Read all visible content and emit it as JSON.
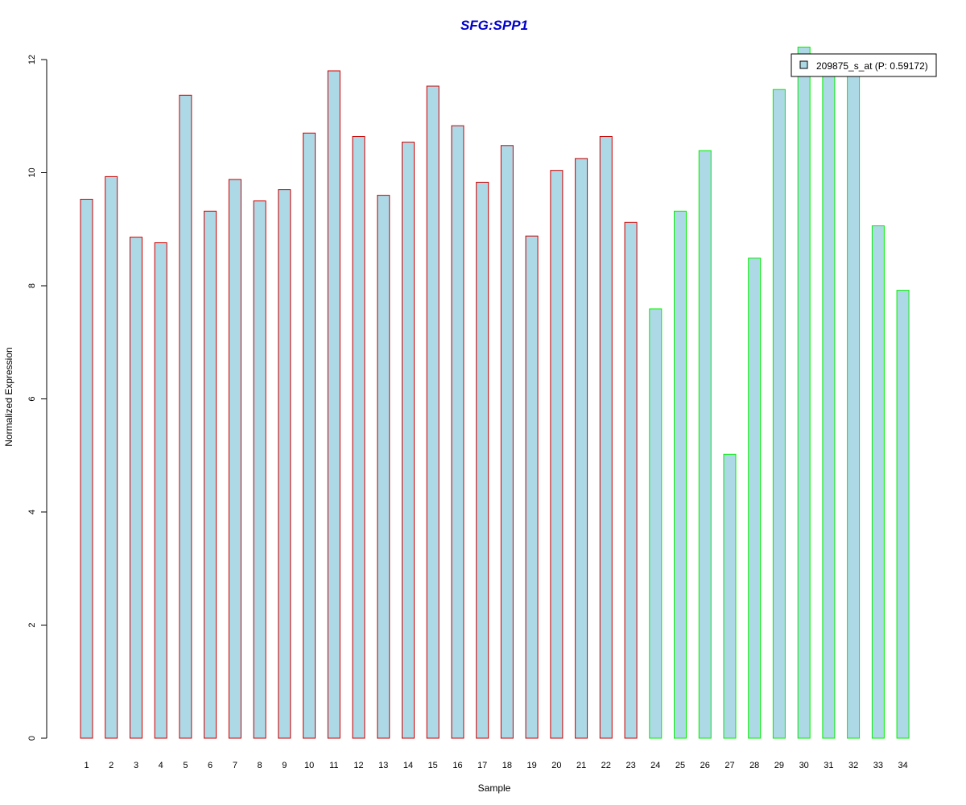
{
  "chart_data": {
    "type": "bar",
    "title": "SFG:SPP1",
    "xlabel": "Sample",
    "ylabel": "Normalized Expression",
    "ylim": [
      0,
      12
    ],
    "yticks": [
      "0",
      "2",
      "4",
      "6",
      "8",
      "10",
      "12"
    ],
    "categories": [
      "1",
      "2",
      "3",
      "4",
      "5",
      "6",
      "7",
      "8",
      "9",
      "10",
      "11",
      "12",
      "13",
      "14",
      "15",
      "16",
      "17",
      "18",
      "19",
      "20",
      "21",
      "22",
      "23",
      "24",
      "25",
      "26",
      "27",
      "28",
      "29",
      "30",
      "31",
      "32",
      "33",
      "34"
    ],
    "values": [
      9.53,
      9.93,
      8.86,
      8.76,
      11.37,
      9.32,
      9.88,
      9.5,
      9.7,
      10.7,
      11.8,
      10.64,
      9.6,
      10.54,
      11.53,
      10.83,
      9.83,
      10.48,
      8.88,
      10.04,
      10.25,
      10.64,
      9.12,
      7.59,
      9.32,
      10.39,
      5.02,
      8.49,
      11.47,
      12.22,
      11.75,
      11.75,
      9.06,
      7.92
    ],
    "groups": [
      "red",
      "red",
      "red",
      "red",
      "red",
      "red",
      "red",
      "red",
      "red",
      "red",
      "red",
      "red",
      "red",
      "red",
      "red",
      "red",
      "red",
      "red",
      "red",
      "red",
      "red",
      "red",
      "red",
      "green",
      "green",
      "green",
      "green",
      "green",
      "green",
      "green",
      "green",
      "green",
      "green",
      "green"
    ],
    "legend": {
      "label": "209875_s_at (P: 0.59172)",
      "placement": "top-right"
    },
    "grid": false,
    "colors": {
      "fill": "#ADD8E6",
      "red_border": "#CC0000",
      "green_border": "#00EE00",
      "title": "#0000CC",
      "axis": "#000000"
    }
  }
}
